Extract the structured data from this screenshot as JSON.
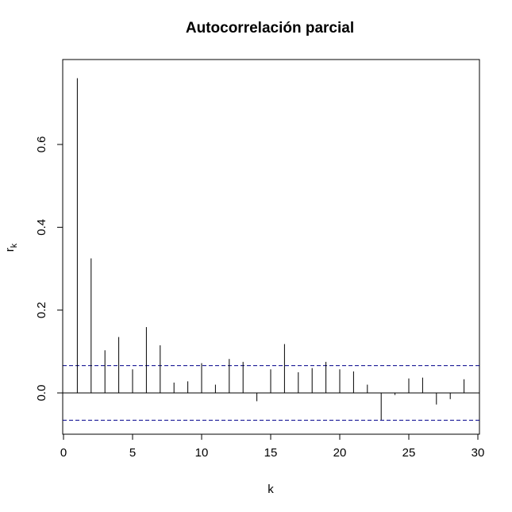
{
  "chart_data": {
    "type": "bar",
    "title": "Autocorrelación parcial",
    "xlabel": "k",
    "ylabel_main": "r",
    "ylabel_sub": "k",
    "xlim": [
      0,
      30
    ],
    "ylim": [
      -0.1,
      0.8
    ],
    "xticks": [
      0,
      5,
      10,
      15,
      20,
      25,
      30
    ],
    "xtick_labels": [
      "0",
      "5",
      "10",
      "15",
      "20",
      "25",
      "30"
    ],
    "yticks": [
      0.0,
      0.2,
      0.4,
      0.6
    ],
    "ytick_labels": [
      "0.0",
      "0.2",
      "0.4",
      "0.6"
    ],
    "confidence_bound": 0.066,
    "colors": {
      "spikes": "#000000",
      "bounds": "#00008b",
      "frame": "#000000",
      "zero_line": "#000000"
    },
    "series": [
      {
        "lags": [
          1,
          2,
          3,
          4,
          5,
          6,
          7,
          8,
          9,
          10,
          11,
          12,
          13,
          14,
          15,
          16,
          17,
          18,
          19,
          20,
          21,
          22,
          23,
          24,
          25,
          26,
          27,
          28,
          29
        ],
        "values": [
          0.76,
          0.325,
          0.103,
          0.135,
          0.057,
          0.159,
          0.115,
          0.025,
          0.028,
          0.072,
          0.02,
          0.082,
          0.075,
          -0.02,
          0.057,
          0.118,
          0.05,
          0.06,
          0.075,
          0.057,
          0.052,
          0.02,
          -0.065,
          -0.005,
          0.035,
          0.037,
          -0.028,
          -0.015,
          0.033
        ]
      }
    ]
  }
}
